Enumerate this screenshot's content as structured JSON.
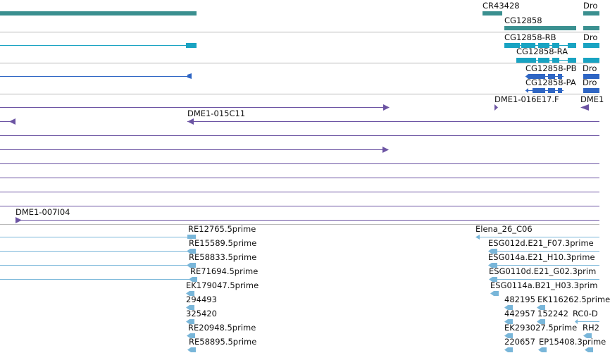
{
  "browser": {
    "colors": {
      "divider": "#b8b8b8",
      "ncrna_teal": "#3a8f8f",
      "gene_teal": "#3a9090",
      "transcript_cyan": "#19a3c2",
      "protein_blue": "#2f66c4",
      "clone_purple": "#6c54a3",
      "est_lightblue": "#79b6d9",
      "label_text": "#111111"
    },
    "tracks": {
      "ncrna": {
        "labels": [
          "CR43428",
          "CG12858",
          "Dro"
        ]
      },
      "transcripts": {
        "labels": [
          "CG12858-RB",
          "CG12858-RA",
          "Dro"
        ]
      },
      "proteins": {
        "labels": [
          "CG12858-PB",
          "CG12858-PA",
          "Dro",
          "Dro"
        ]
      },
      "clones": {
        "labels": [
          "DME1-016E17.F",
          "DME1",
          "DME1-015C11",
          "DME1-007I04"
        ]
      },
      "ests": {
        "labels": [
          "RE12765.5prime",
          "Elena_26_C06",
          "RE15589.5prime",
          "ESG012d.E21_F07.3prime",
          "RE58833.5prime",
          "ESG014a.E21_H10.3prime",
          "RE71694.5prime",
          "ESG0110d.E21_G02.3prim",
          "EK179047.5prime",
          "ESG0114a.B21_H03.3prim",
          "294493",
          "482195",
          "EK116262.5prime",
          "325420",
          "442957",
          "152242",
          "RC0-D",
          "RE20948.5prime",
          "EK293027.5prime",
          "RH2",
          "RE58895.5prime",
          "220657",
          "EP15408.3prime"
        ]
      }
    }
  }
}
